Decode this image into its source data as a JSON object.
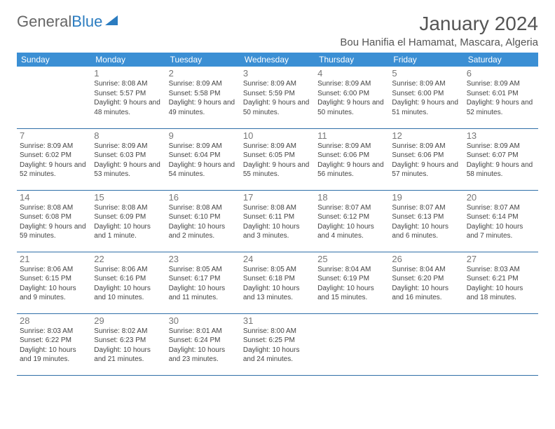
{
  "logo": {
    "part1": "General",
    "part2": "Blue"
  },
  "title": "January 2024",
  "location": "Bou Hanifia el Hamamat, Mascara, Algeria",
  "colors": {
    "header_bg": "#3b8fd4",
    "header_text": "#ffffff",
    "cell_border": "#2f6fa8",
    "daynum": "#777777",
    "body_text": "#444444",
    "logo_blue": "#2b7cc0"
  },
  "weekdays": [
    "Sunday",
    "Monday",
    "Tuesday",
    "Wednesday",
    "Thursday",
    "Friday",
    "Saturday"
  ],
  "weeks": [
    [
      null,
      {
        "d": "1",
        "sr": "8:08 AM",
        "ss": "5:57 PM",
        "dl": "9 hours and 48 minutes."
      },
      {
        "d": "2",
        "sr": "8:09 AM",
        "ss": "5:58 PM",
        "dl": "9 hours and 49 minutes."
      },
      {
        "d": "3",
        "sr": "8:09 AM",
        "ss": "5:59 PM",
        "dl": "9 hours and 50 minutes."
      },
      {
        "d": "4",
        "sr": "8:09 AM",
        "ss": "6:00 PM",
        "dl": "9 hours and 50 minutes."
      },
      {
        "d": "5",
        "sr": "8:09 AM",
        "ss": "6:00 PM",
        "dl": "9 hours and 51 minutes."
      },
      {
        "d": "6",
        "sr": "8:09 AM",
        "ss": "6:01 PM",
        "dl": "9 hours and 52 minutes."
      }
    ],
    [
      {
        "d": "7",
        "sr": "8:09 AM",
        "ss": "6:02 PM",
        "dl": "9 hours and 52 minutes."
      },
      {
        "d": "8",
        "sr": "8:09 AM",
        "ss": "6:03 PM",
        "dl": "9 hours and 53 minutes."
      },
      {
        "d": "9",
        "sr": "8:09 AM",
        "ss": "6:04 PM",
        "dl": "9 hours and 54 minutes."
      },
      {
        "d": "10",
        "sr": "8:09 AM",
        "ss": "6:05 PM",
        "dl": "9 hours and 55 minutes."
      },
      {
        "d": "11",
        "sr": "8:09 AM",
        "ss": "6:06 PM",
        "dl": "9 hours and 56 minutes."
      },
      {
        "d": "12",
        "sr": "8:09 AM",
        "ss": "6:06 PM",
        "dl": "9 hours and 57 minutes."
      },
      {
        "d": "13",
        "sr": "8:09 AM",
        "ss": "6:07 PM",
        "dl": "9 hours and 58 minutes."
      }
    ],
    [
      {
        "d": "14",
        "sr": "8:08 AM",
        "ss": "6:08 PM",
        "dl": "9 hours and 59 minutes."
      },
      {
        "d": "15",
        "sr": "8:08 AM",
        "ss": "6:09 PM",
        "dl": "10 hours and 1 minute."
      },
      {
        "d": "16",
        "sr": "8:08 AM",
        "ss": "6:10 PM",
        "dl": "10 hours and 2 minutes."
      },
      {
        "d": "17",
        "sr": "8:08 AM",
        "ss": "6:11 PM",
        "dl": "10 hours and 3 minutes."
      },
      {
        "d": "18",
        "sr": "8:07 AM",
        "ss": "6:12 PM",
        "dl": "10 hours and 4 minutes."
      },
      {
        "d": "19",
        "sr": "8:07 AM",
        "ss": "6:13 PM",
        "dl": "10 hours and 6 minutes."
      },
      {
        "d": "20",
        "sr": "8:07 AM",
        "ss": "6:14 PM",
        "dl": "10 hours and 7 minutes."
      }
    ],
    [
      {
        "d": "21",
        "sr": "8:06 AM",
        "ss": "6:15 PM",
        "dl": "10 hours and 9 minutes."
      },
      {
        "d": "22",
        "sr": "8:06 AM",
        "ss": "6:16 PM",
        "dl": "10 hours and 10 minutes."
      },
      {
        "d": "23",
        "sr": "8:05 AM",
        "ss": "6:17 PM",
        "dl": "10 hours and 11 minutes."
      },
      {
        "d": "24",
        "sr": "8:05 AM",
        "ss": "6:18 PM",
        "dl": "10 hours and 13 minutes."
      },
      {
        "d": "25",
        "sr": "8:04 AM",
        "ss": "6:19 PM",
        "dl": "10 hours and 15 minutes."
      },
      {
        "d": "26",
        "sr": "8:04 AM",
        "ss": "6:20 PM",
        "dl": "10 hours and 16 minutes."
      },
      {
        "d": "27",
        "sr": "8:03 AM",
        "ss": "6:21 PM",
        "dl": "10 hours and 18 minutes."
      }
    ],
    [
      {
        "d": "28",
        "sr": "8:03 AM",
        "ss": "6:22 PM",
        "dl": "10 hours and 19 minutes."
      },
      {
        "d": "29",
        "sr": "8:02 AM",
        "ss": "6:23 PM",
        "dl": "10 hours and 21 minutes."
      },
      {
        "d": "30",
        "sr": "8:01 AM",
        "ss": "6:24 PM",
        "dl": "10 hours and 23 minutes."
      },
      {
        "d": "31",
        "sr": "8:00 AM",
        "ss": "6:25 PM",
        "dl": "10 hours and 24 minutes."
      },
      null,
      null,
      null
    ]
  ],
  "labels": {
    "sunrise": "Sunrise: ",
    "sunset": "Sunset: ",
    "daylight": "Daylight: "
  }
}
